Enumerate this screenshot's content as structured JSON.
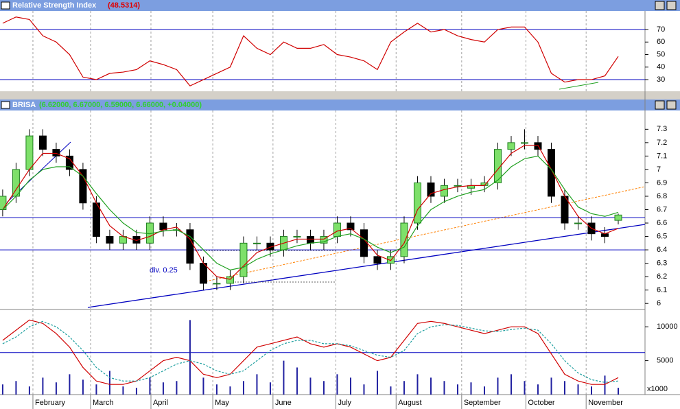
{
  "chart_data": [
    {
      "type": "line",
      "title": "Relative Strength Index",
      "title_value": "(48.5314)",
      "color": "#d00000",
      "ylim": [
        20.7,
        84.8
      ],
      "yticks": [
        30,
        40,
        50,
        60,
        70
      ],
      "reference_lines": [
        30,
        70
      ],
      "values": [
        75,
        80,
        78,
        65,
        60,
        50,
        32,
        30,
        35,
        36,
        38,
        45,
        42,
        38,
        25,
        30,
        35,
        40,
        65,
        55,
        50,
        60,
        55,
        55,
        58,
        50,
        48,
        45,
        38,
        60,
        68,
        75,
        68,
        70,
        65,
        62,
        60,
        70,
        72,
        72,
        60,
        35,
        28,
        30,
        30,
        33,
        48.5314
      ]
    },
    {
      "type": "candlestick",
      "title": "BRISA",
      "title_value": "(6.62000, 6.67000, 6.59000, 6.66000, +0.04000)",
      "annotation": "div. 0.25",
      "up_color": "#7ee06a",
      "down_color": "#000000",
      "ylim": [
        5.96,
        7.44
      ],
      "yticks": [
        6.0,
        6.1,
        6.2,
        6.3,
        6.4,
        6.5,
        6.6,
        6.7,
        6.8,
        6.9,
        7.0,
        7.1,
        7.2,
        7.3
      ],
      "reference_lines": [
        6.64,
        6.4
      ],
      "open": [
        6.7,
        6.8,
        7.0,
        7.25,
        7.15,
        7.1,
        7.0,
        6.75,
        6.5,
        6.45,
        6.5,
        6.45,
        6.6,
        6.55,
        6.55,
        6.3,
        6.15,
        6.15,
        6.2,
        6.45,
        6.45,
        6.4,
        6.5,
        6.5,
        6.45,
        6.5,
        6.6,
        6.55,
        6.35,
        6.3,
        6.35,
        6.6,
        6.9,
        6.8,
        6.88,
        6.86,
        6.88,
        6.9,
        7.15,
        7.2,
        7.2,
        7.15,
        6.8,
        6.6,
        6.6,
        6.52,
        6.62
      ],
      "high": [
        6.85,
        7.05,
        7.3,
        7.3,
        7.2,
        7.15,
        7.05,
        6.8,
        6.55,
        6.55,
        6.55,
        6.65,
        6.65,
        6.6,
        6.6,
        6.35,
        6.2,
        6.25,
        6.5,
        6.5,
        6.5,
        6.55,
        6.55,
        6.55,
        6.55,
        6.65,
        6.65,
        6.6,
        6.4,
        6.4,
        6.65,
        6.95,
        6.95,
        6.93,
        6.93,
        6.93,
        6.95,
        7.2,
        7.25,
        7.3,
        7.25,
        7.2,
        6.85,
        6.65,
        6.65,
        6.57,
        6.67
      ],
      "low": [
        6.65,
        6.75,
        6.95,
        7.1,
        7.05,
        6.95,
        6.7,
        6.45,
        6.4,
        6.4,
        6.4,
        6.4,
        6.5,
        6.5,
        6.25,
        6.1,
        6.1,
        6.1,
        6.15,
        6.4,
        6.35,
        6.35,
        6.45,
        6.4,
        6.4,
        6.45,
        6.5,
        6.3,
        6.25,
        6.25,
        6.3,
        6.55,
        6.75,
        6.75,
        6.83,
        6.81,
        6.83,
        6.85,
        7.1,
        7.15,
        7.1,
        6.75,
        6.55,
        6.55,
        6.47,
        6.45,
        6.59
      ],
      "close": [
        6.8,
        7.0,
        7.25,
        7.15,
        7.1,
        7.0,
        6.75,
        6.5,
        6.45,
        6.5,
        6.45,
        6.6,
        6.55,
        6.55,
        6.3,
        6.15,
        6.15,
        6.2,
        6.45,
        6.45,
        6.4,
        6.5,
        6.5,
        6.45,
        6.5,
        6.6,
        6.55,
        6.35,
        6.3,
        6.35,
        6.6,
        6.9,
        6.8,
        6.88,
        6.88,
        6.88,
        6.9,
        7.15,
        7.2,
        7.2,
        7.15,
        6.8,
        6.6,
        6.6,
        6.52,
        6.5,
        6.66
      ],
      "series": [
        {
          "color": "#d00000",
          "values": [
            6.7,
            6.85,
            7.0,
            7.12,
            7.12,
            7.08,
            6.95,
            6.75,
            6.58,
            6.5,
            6.47,
            6.5,
            6.55,
            6.57,
            6.48,
            6.3,
            6.2,
            6.18,
            6.28,
            6.38,
            6.42,
            6.45,
            6.48,
            6.48,
            6.48,
            6.54,
            6.56,
            6.48,
            6.36,
            6.32,
            6.45,
            6.7,
            6.82,
            6.85,
            6.87,
            6.88,
            6.88,
            7.0,
            7.12,
            7.18,
            7.18,
            7.0,
            6.8,
            6.65,
            6.56,
            6.52,
            6.56
          ]
        },
        {
          "color": "#20a020",
          "values": [
            6.7,
            6.8,
            6.92,
            7.0,
            7.02,
            7.02,
            6.95,
            6.82,
            6.7,
            6.6,
            6.53,
            6.52,
            6.54,
            6.55,
            6.5,
            6.4,
            6.3,
            6.25,
            6.27,
            6.33,
            6.37,
            6.4,
            6.43,
            6.45,
            6.46,
            6.5,
            6.52,
            6.48,
            6.42,
            6.38,
            6.42,
            6.58,
            6.7,
            6.76,
            6.8,
            6.83,
            6.85,
            6.92,
            7.02,
            7.08,
            7.1,
            7.0,
            6.85,
            6.72,
            6.67,
            6.65,
            6.68
          ]
        }
      ]
    },
    {
      "type": "line",
      "unit_label": "x1000",
      "volume_color": "#2020a0",
      "ylim": [
        0,
        12450
      ],
      "yticks": [
        5000,
        10000
      ],
      "reference_lines": [
        6200
      ],
      "xlim": [
        -0.2,
        48
      ],
      "xticks": [
        {
          "value": 2.26,
          "label": "February"
        },
        {
          "value": 6.57,
          "label": "March"
        },
        {
          "value": 11.08,
          "label": "April"
        },
        {
          "value": 15.7,
          "label": "May"
        },
        {
          "value": 20.2,
          "label": "June"
        },
        {
          "value": 24.9,
          "label": "July"
        },
        {
          "value": 29.4,
          "label": "August"
        },
        {
          "value": 34.3,
          "label": "September"
        },
        {
          "value": 39.1,
          "label": "October"
        },
        {
          "value": 43.6,
          "label": "November"
        }
      ],
      "volume": [
        1500,
        2000,
        1200,
        2500,
        1800,
        3000,
        2200,
        1500,
        3500,
        1200,
        1000,
        2500,
        1800,
        2000,
        11000,
        2500,
        1500,
        1200,
        2000,
        3000,
        1800,
        5000,
        4000,
        2500,
        2000,
        3000,
        2500,
        1500,
        3500,
        1200,
        2000,
        3000,
        2500,
        2000,
        1500,
        1800,
        1200,
        2500,
        3000,
        2000,
        1500,
        2500,
        2000,
        1500,
        1200,
        2800,
        1000
      ],
      "series": [
        {
          "color": "#d00000",
          "values": [
            8000,
            9500,
            11000,
            10500,
            9000,
            7000,
            4000,
            2000,
            1500,
            1500,
            2000,
            3500,
            5000,
            5500,
            5000,
            3000,
            2500,
            3000,
            5000,
            7000,
            7500,
            8000,
            8500,
            7500,
            7000,
            7500,
            7000,
            6000,
            5000,
            5500,
            8000,
            10500,
            10800,
            10500,
            10000,
            9500,
            9000,
            9500,
            10000,
            10000,
            9000,
            6000,
            3000,
            2000,
            1500,
            1500,
            2500
          ]
        },
        {
          "color": "#20a0a0",
          "dashed": true,
          "values": [
            7500,
            8500,
            10000,
            10800,
            10000,
            8500,
            6500,
            4000,
            2500,
            2000,
            2000,
            2500,
            3500,
            4500,
            5000,
            4500,
            3500,
            3000,
            3500,
            5000,
            6500,
            7500,
            8000,
            8000,
            7500,
            7500,
            7200,
            6500,
            5800,
            5500,
            6500,
            9000,
            10000,
            10300,
            10200,
            9800,
            9400,
            9300,
            9600,
            9800,
            9500,
            7500,
            5000,
            3200,
            2200,
            1800,
            2000
          ]
        }
      ]
    }
  ]
}
